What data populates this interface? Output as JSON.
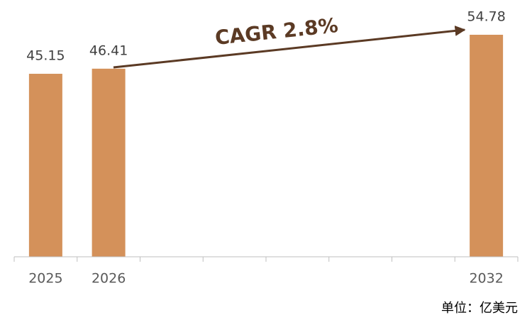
{
  "chart_data": {
    "type": "bar",
    "categories": [
      "2025",
      "2026",
      null,
      null,
      null,
      null,
      null,
      "2032"
    ],
    "values": [
      45.15,
      46.41,
      null,
      null,
      null,
      null,
      null,
      54.78
    ],
    "color": "#d4915a",
    "annotation": "CAGR 2.8%",
    "unit_note": "单位：亿美元"
  }
}
